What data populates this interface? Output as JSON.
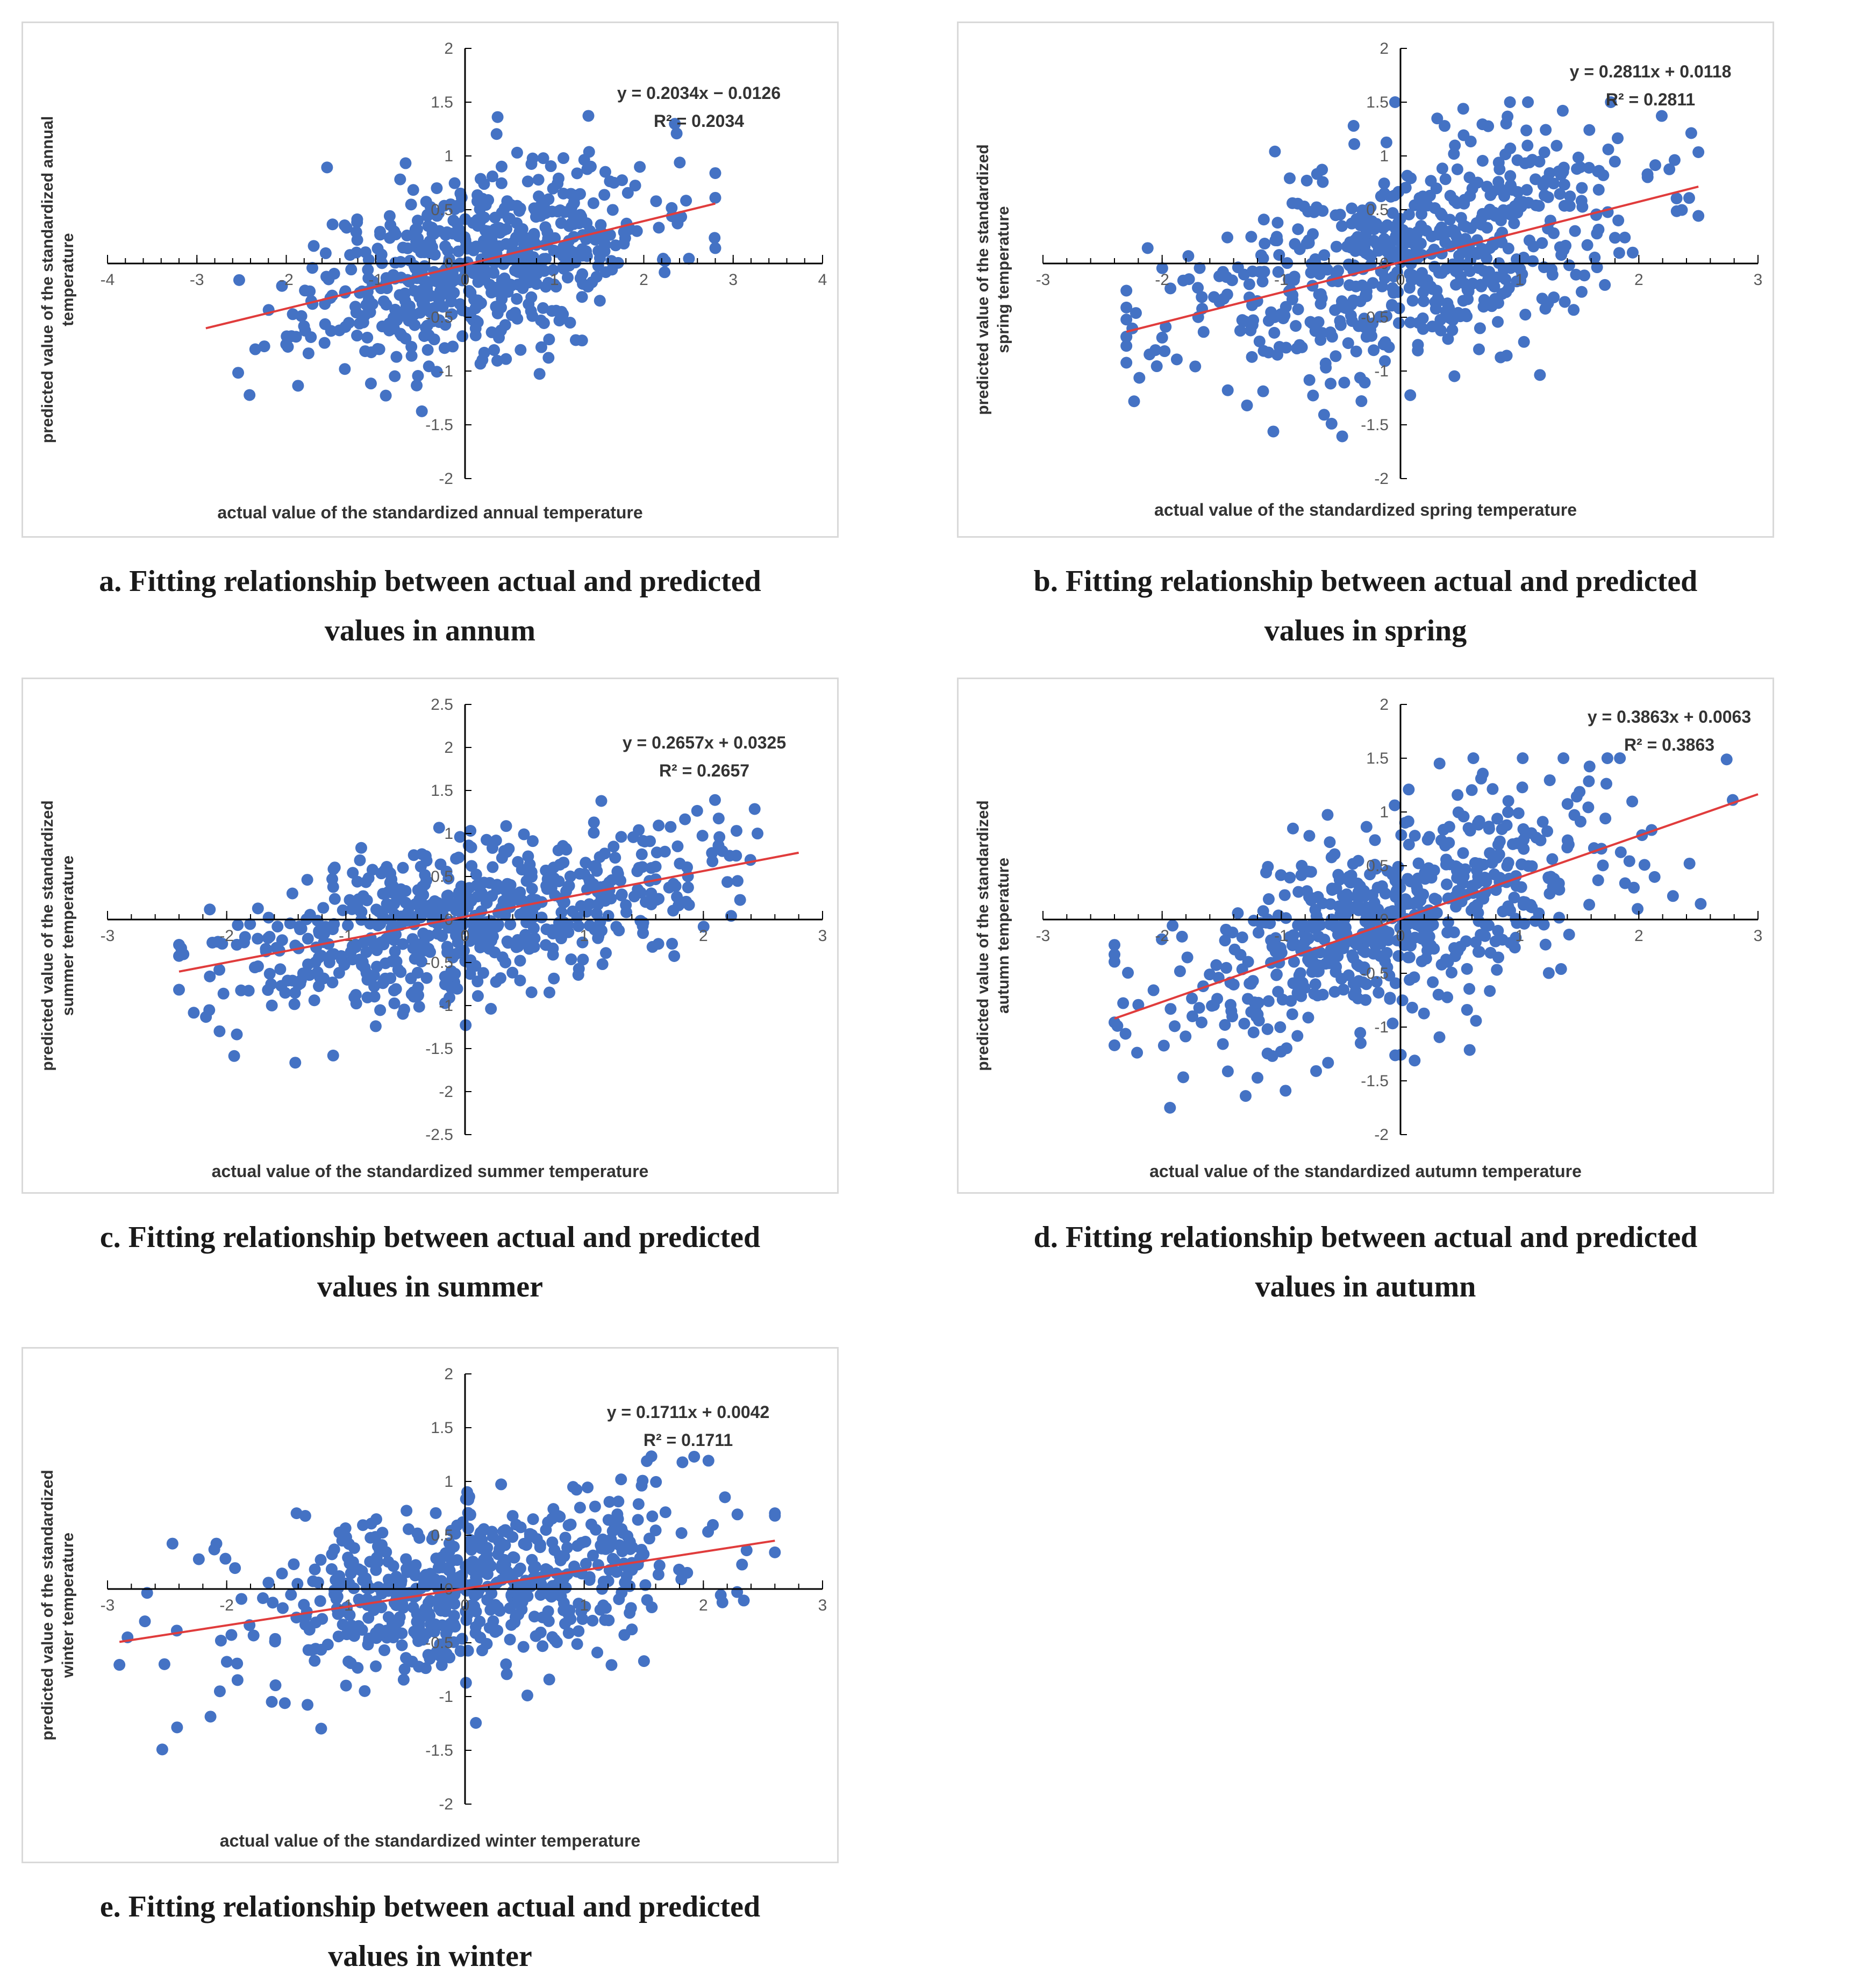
{
  "colors": {
    "point": "#4472C4",
    "trend": "#E03C3C",
    "axis": "#000000",
    "text": "#333333"
  },
  "chart_data": [
    {
      "type": "scatter",
      "panel": "a",
      "caption": "a. Fitting relationship between actual and predicted\nvalues in annum",
      "xlabel": "actual value of the standardized annual temperature",
      "ylabel": "predicted value of the standardized annual\ntemperature",
      "equation": "y = 0.2034x − 0.0126",
      "r2": "R² = 0.2034",
      "trend": {
        "slope": 0.2034,
        "intercept": -0.0126,
        "x_from": -2.9,
        "x_to": 2.8
      },
      "xlim": [
        -4,
        4
      ],
      "ylim": [
        -2,
        2
      ],
      "x_ticks": [
        "-4",
        "-3",
        "-2",
        "-1",
        "0",
        "1",
        "2",
        "3",
        "4"
      ],
      "y_ticks": [
        "-2",
        "-1.5",
        "-1",
        "-0.5",
        "0",
        "0.5",
        "1",
        "1.5",
        "2"
      ],
      "series": [
        {
          "n_points": 620,
          "x_mean": 0.15,
          "x_sd": 0.95,
          "x_min": -2.9,
          "x_max": 2.8,
          "noise_sd": 0.42,
          "seed": 11
        }
      ]
    },
    {
      "type": "scatter",
      "panel": "b",
      "caption": "b. Fitting relationship between actual and predicted\nvalues in spring",
      "xlabel": "actual value of the standardized spring temperature",
      "ylabel": "predicted value of the standardized\nspring temperature",
      "equation": "y = 0.2811x + 0.0118",
      "r2": "R² = 0.2811",
      "trend": {
        "slope": 0.2811,
        "intercept": 0.0118,
        "x_from": -2.3,
        "x_to": 2.5
      },
      "xlim": [
        -3,
        3
      ],
      "ylim": [
        -2,
        2
      ],
      "x_ticks": [
        "-3",
        "-2",
        "-1",
        "0",
        "1",
        "2",
        "3"
      ],
      "y_ticks": [
        "-2",
        "-1.5",
        "-1",
        "-0.5",
        "0",
        "0.5",
        "1",
        "1.5",
        "2"
      ],
      "series": [
        {
          "n_points": 620,
          "x_mean": 0.0,
          "x_sd": 1.0,
          "x_min": -2.3,
          "x_max": 2.5,
          "noise_sd": 0.5,
          "seed": 23
        }
      ]
    },
    {
      "type": "scatter",
      "panel": "c",
      "caption": "c. Fitting relationship between actual and predicted\nvalues in summer",
      "xlabel": "actual value of the standardized summer temperature",
      "ylabel": "predicted value of the standardized\nsummer temperature",
      "equation": "y = 0.2657x + 0.0325",
      "r2": "R² = 0.2657",
      "trend": {
        "slope": 0.2657,
        "intercept": 0.0325,
        "x_from": -2.4,
        "x_to": 2.8
      },
      "xlim": [
        -3,
        3
      ],
      "ylim": [
        -2.5,
        2.5
      ],
      "x_ticks": [
        "-3",
        "-2",
        "-1",
        "0",
        "1",
        "2",
        "3"
      ],
      "y_ticks": [
        "-2.5",
        "-2",
        "-1.5",
        "-1",
        "-0.5",
        "0",
        "0.5",
        "1",
        "1.5",
        "2",
        "2.5"
      ],
      "series": [
        {
          "n_points": 620,
          "x_mean": 0.0,
          "x_sd": 1.0,
          "x_min": -2.4,
          "x_max": 2.8,
          "noise_sd": 0.45,
          "seed": 37
        }
      ]
    },
    {
      "type": "scatter",
      "panel": "d",
      "caption": "d. Fitting relationship between actual and predicted\nvalues in autumn",
      "xlabel": "actual value of the standardized autumn temperature",
      "ylabel": "predicted value of the standardized\nautumn temperature",
      "equation": "y = 0.3863x + 0.0063",
      "r2": "R² = 0.3863",
      "trend": {
        "slope": 0.3863,
        "intercept": 0.0063,
        "x_from": -2.4,
        "x_to": 3.0
      },
      "xlim": [
        -3,
        3
      ],
      "ylim": [
        -2,
        2
      ],
      "x_ticks": [
        "-3",
        "-2",
        "-1",
        "0",
        "1",
        "2",
        "3"
      ],
      "y_ticks": [
        "-2",
        "-1.5",
        "-1",
        "-0.5",
        "0",
        "0.5",
        "1",
        "1.5",
        "2"
      ],
      "series": [
        {
          "n_points": 620,
          "x_mean": 0.0,
          "x_sd": 1.0,
          "x_min": -2.4,
          "x_max": 2.8,
          "noise_sd": 0.48,
          "seed": 53
        }
      ]
    },
    {
      "type": "scatter",
      "panel": "e",
      "caption": "e. Fitting relationship between actual and predicted\nvalues in winter",
      "xlabel": "actual value of the standardized winter temperature",
      "ylabel": "predicted value of the standardized\nwinter temperature",
      "equation": "y = 0.1711x + 0.0042",
      "r2": "R² = 0.1711",
      "trend": {
        "slope": 0.1711,
        "intercept": 0.0042,
        "x_from": -2.9,
        "x_to": 2.6
      },
      "xlim": [
        -3,
        3
      ],
      "ylim": [
        -2,
        2
      ],
      "x_ticks": [
        "-3",
        "-2",
        "-1",
        "0",
        "1",
        "2",
        "3"
      ],
      "y_ticks": [
        "-2",
        "-1.5",
        "-1",
        "-0.5",
        "0",
        "0.5",
        "1",
        "1.5",
        "2"
      ],
      "series": [
        {
          "n_points": 620,
          "x_mean": 0.0,
          "x_sd": 1.0,
          "x_min": -2.9,
          "x_max": 2.6,
          "noise_sd": 0.4,
          "seed": 71
        }
      ]
    }
  ]
}
